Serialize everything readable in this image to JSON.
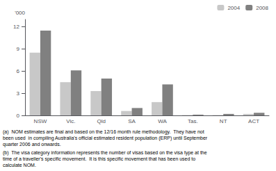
{
  "chart_data": {
    "type": "bar",
    "categories": [
      "NSW",
      "Vic.",
      "Qld",
      "SA",
      "WA",
      "Tas.",
      "NT",
      "ACT"
    ],
    "series": [
      {
        "name": "2004",
        "color": "#c8c8c8",
        "values": [
          8.5,
          4.5,
          3.3,
          0.6,
          1.8,
          0.05,
          0.05,
          0.2
        ]
      },
      {
        "name": "2008",
        "color": "#808080",
        "values": [
          11.5,
          6.1,
          5.0,
          1.0,
          4.2,
          0.1,
          0.2,
          0.35
        ]
      }
    ],
    "ylabel": "'000",
    "ylim": [
      0,
      13
    ],
    "yticks": [
      0,
      3,
      6,
      9,
      12
    ],
    "grid": false,
    "legend": "upper right",
    "annotations": [
      "(a)  NOM estimates are final and based on the 12/16 month rule methodology.  They have not\nbeen used  in compiling Australia's official estimated resident population (ERP) until September\nquarter 2006 and onwards.",
      "(b)  The visa category information represents the number of visas based on the visa type at the\ntime of a traveller's specific movement.  It is this specific movement that has been used to\ncalculate NOM."
    ]
  }
}
